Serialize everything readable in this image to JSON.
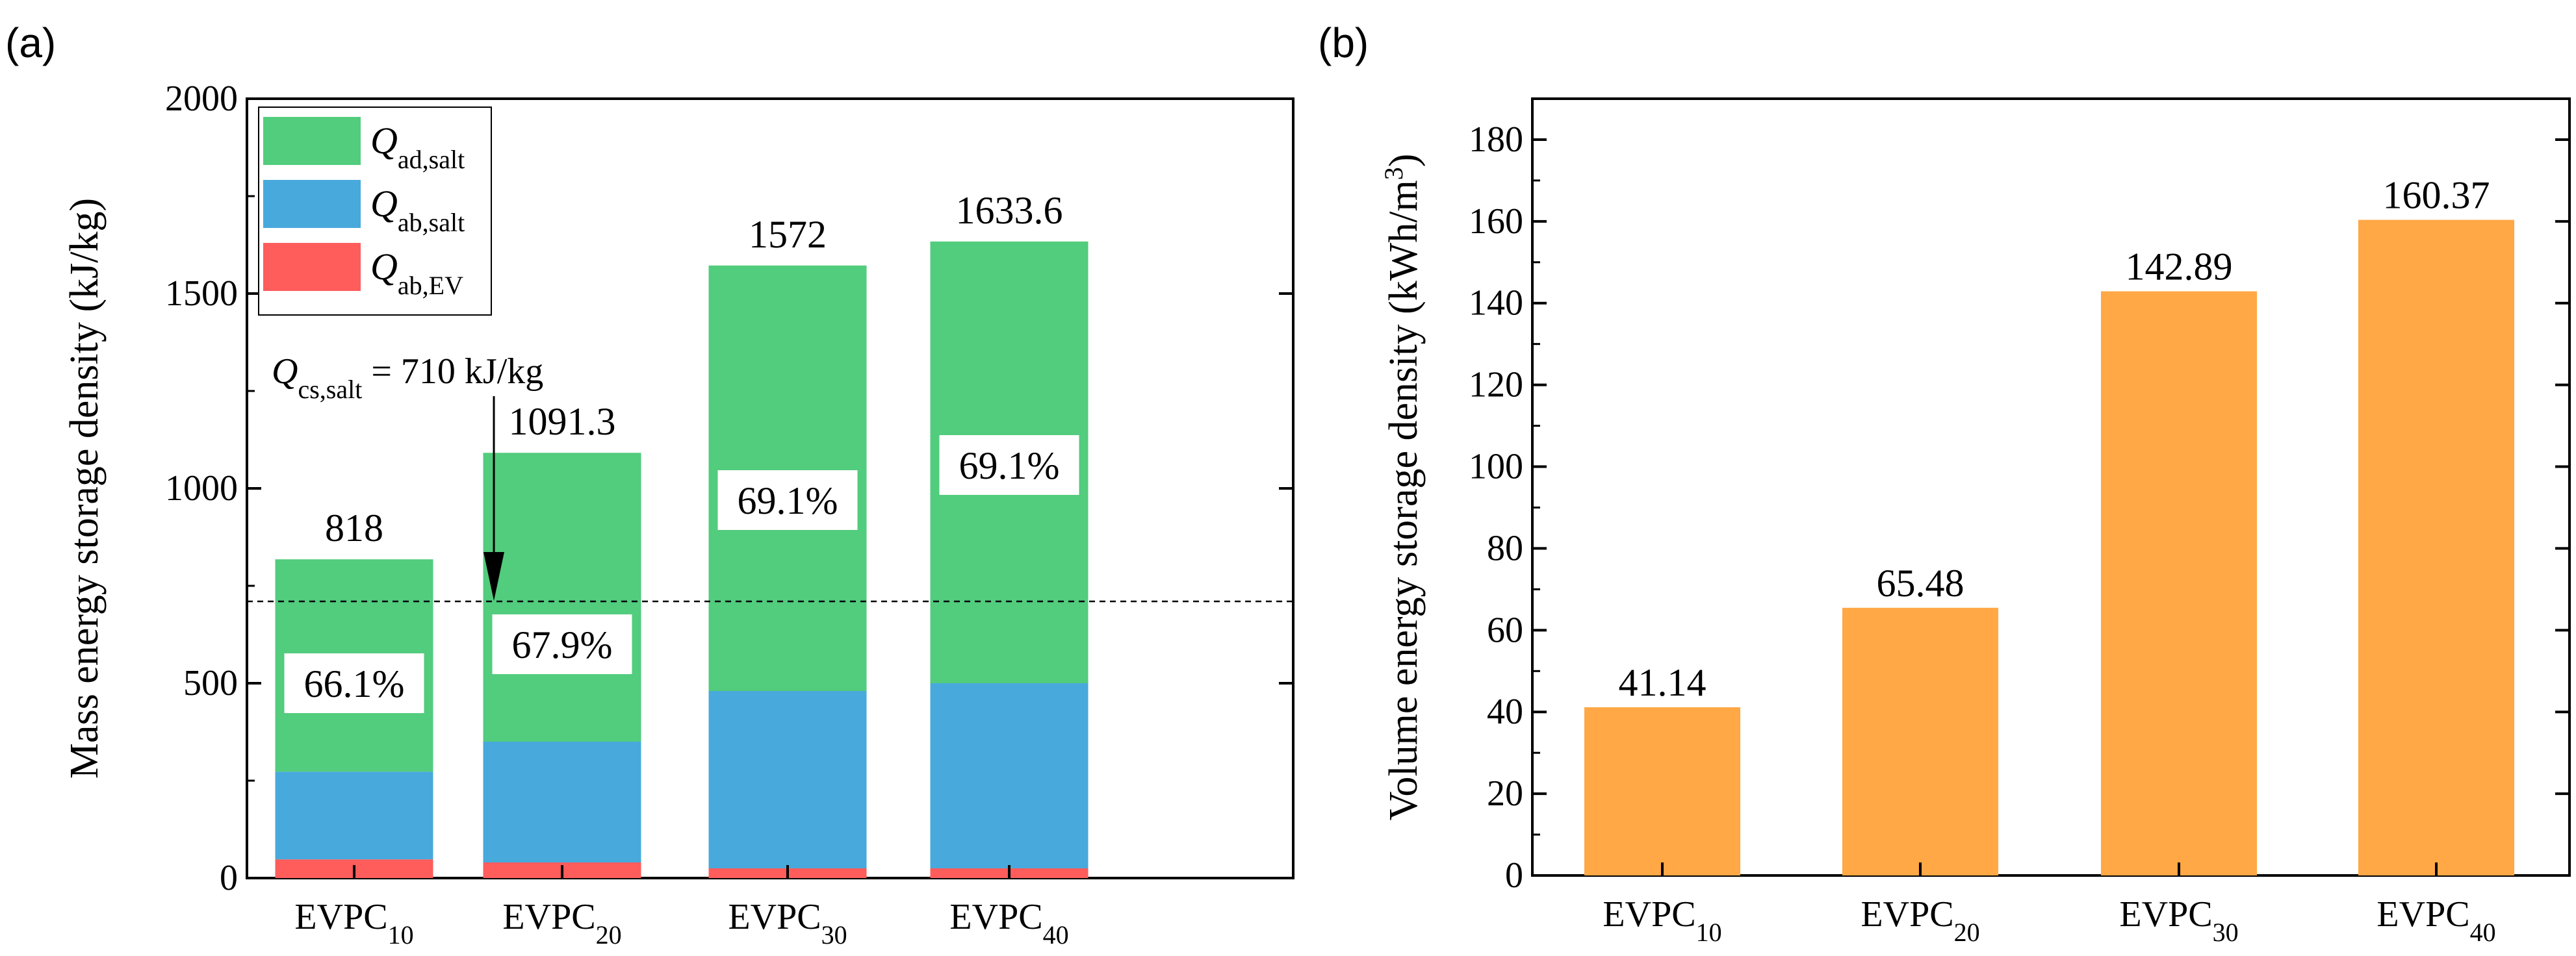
{
  "chart_data": [
    {
      "panel": "(a)",
      "type": "bar",
      "stacked": true,
      "categories": [
        {
          "base": "EVPC",
          "sub": "10"
        },
        {
          "base": "EVPC",
          "sub": "20"
        },
        {
          "base": "EVPC",
          "sub": "30"
        },
        {
          "base": "EVPC",
          "sub": "40"
        }
      ],
      "series": [
        {
          "name_base": "Q",
          "name_sub": "ab,EV",
          "color": "#ff5c5c",
          "values": [
            48,
            40,
            25,
            25
          ]
        },
        {
          "name_base": "Q",
          "name_sub": "ab,salt",
          "color": "#48a9dc",
          "values": [
            225,
            310,
            455,
            475
          ]
        },
        {
          "name_base": "Q",
          "name_sub": "ad,salt",
          "color": "#52cc7d",
          "values": [
            545,
            741.3,
            1092,
            1133.6
          ]
        }
      ],
      "totals": [
        818,
        1091.3,
        1572,
        1633.6
      ],
      "total_labels": [
        "818",
        "1091.3",
        "1572",
        "1633.6"
      ],
      "percent_labels": [
        "66.1%",
        "67.9%",
        "69.1%",
        "69.1%"
      ],
      "percent_label_y": [
        500,
        600,
        970,
        1060
      ],
      "ylabel": "Mass energy storage density (kJ/kg)",
      "ylim": [
        0,
        2000
      ],
      "yticks": [
        0,
        500,
        1000,
        1500,
        2000
      ],
      "reference_line": {
        "value": 710
      },
      "annotation": {
        "base": "Q",
        "sub": "cs,salt",
        "rest": " = 710 kJ/kg"
      },
      "legend": "top-left"
    },
    {
      "panel": "(b)",
      "type": "bar",
      "categories": [
        {
          "base": "EVPC",
          "sub": "10"
        },
        {
          "base": "EVPC",
          "sub": "20"
        },
        {
          "base": "EVPC",
          "sub": "30"
        },
        {
          "base": "EVPC",
          "sub": "40"
        }
      ],
      "values": [
        41.14,
        65.48,
        142.89,
        160.37
      ],
      "value_labels": [
        "41.14",
        "65.48",
        "142.89",
        "160.37"
      ],
      "color": "#ffa845",
      "ylabel": {
        "base": "Volume energy storage density (kWh/m",
        "sup": "3",
        "end": ")"
      },
      "ylim": [
        0,
        190
      ],
      "yticks": [
        0,
        20,
        40,
        60,
        80,
        100,
        120,
        140,
        160,
        180
      ]
    }
  ]
}
